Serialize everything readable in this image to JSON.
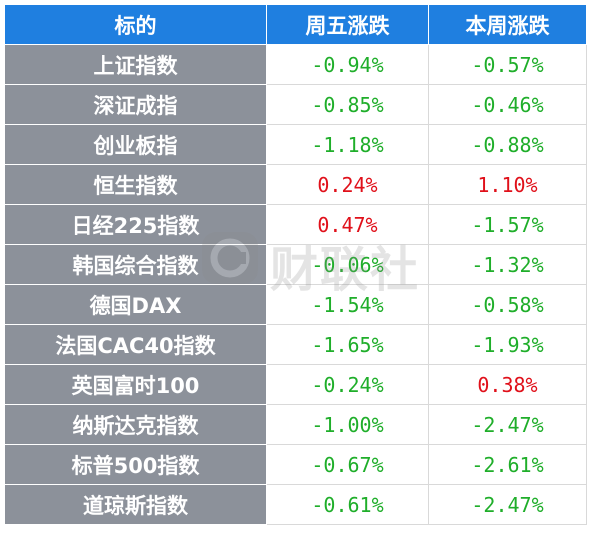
{
  "header": {
    "col_name": "标的",
    "col_friday": "周五涨跌",
    "col_week": "本周涨跌"
  },
  "rows": [
    {
      "name": "上证指数",
      "friday": "-0.94%",
      "week": "-0.57%",
      "friday_dir": "down",
      "week_dir": "down"
    },
    {
      "name": "深证成指",
      "friday": "-0.85%",
      "week": "-0.46%",
      "friday_dir": "down",
      "week_dir": "down"
    },
    {
      "name": "创业板指",
      "friday": "-1.18%",
      "week": "-0.88%",
      "friday_dir": "down",
      "week_dir": "down"
    },
    {
      "name": "恒生指数",
      "friday": "0.24%",
      "week": "1.10%",
      "friday_dir": "up",
      "week_dir": "up"
    },
    {
      "name": "日经225指数",
      "friday": "0.47%",
      "week": "-1.57%",
      "friday_dir": "up",
      "week_dir": "down"
    },
    {
      "name": "韩国综合指数",
      "friday": "-0.06%",
      "week": "-1.32%",
      "friday_dir": "down",
      "week_dir": "down"
    },
    {
      "name": "德国DAX",
      "friday": "-1.54%",
      "week": "-0.58%",
      "friday_dir": "down",
      "week_dir": "down"
    },
    {
      "name": "法国CAC40指数",
      "friday": "-1.65%",
      "week": "-1.93%",
      "friday_dir": "down",
      "week_dir": "down"
    },
    {
      "name": "英国富时100",
      "friday": "-0.24%",
      "week": "0.38%",
      "friday_dir": "down",
      "week_dir": "up"
    },
    {
      "name": "纳斯达克指数",
      "friday": "-1.00%",
      "week": "-2.47%",
      "friday_dir": "down",
      "week_dir": "down"
    },
    {
      "name": "标普500指数",
      "friday": "-0.67%",
      "week": "-2.61%",
      "friday_dir": "down",
      "week_dir": "down"
    },
    {
      "name": "道琼斯指数",
      "friday": "-0.61%",
      "week": "-2.47%",
      "friday_dir": "down",
      "week_dir": "down"
    }
  ],
  "watermark": {
    "icon": "c-logo-icon",
    "text": "财联社"
  },
  "colors": {
    "header_bg": "#1f7fe0",
    "name_bg": "#8c919a",
    "up": "#e0101a",
    "down": "#1fae2a"
  }
}
